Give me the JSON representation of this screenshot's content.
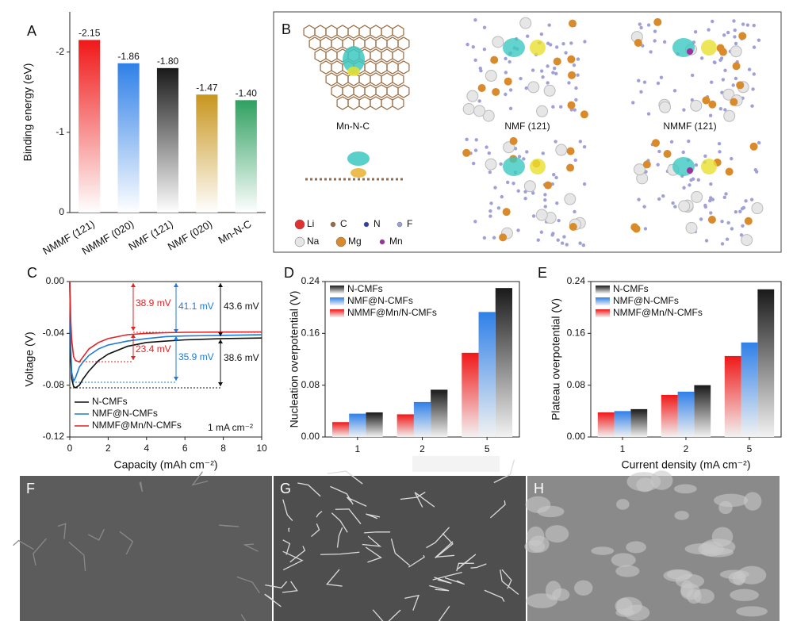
{
  "chart_data": [
    {
      "type": "bar",
      "panel": "A",
      "ylabel": "Binding energy (eV)",
      "categories": [
        "NMMF (121)",
        "NMMF (020)",
        "NMF (121)",
        "NMF (020)",
        "Mn-N-C"
      ],
      "values": [
        -2.15,
        -1.86,
        -1.8,
        -1.47,
        -1.4
      ],
      "value_labels": [
        "-2.15",
        "-1.86",
        "-1.80",
        "-1.47",
        "-1.40"
      ],
      "colors": [
        "#f01818",
        "#2f80e8",
        "#1a1a1a",
        "#c8961e",
        "#2fa060"
      ],
      "ylim": [
        0,
        -2.5
      ],
      "yticks": [
        0,
        -1,
        -2
      ],
      "grid": false
    },
    {
      "type": "line",
      "panel": "C",
      "xlabel": "Capacity (mAh cm⁻²)",
      "ylabel": "Voltage (V)",
      "x": [
        0,
        0.05,
        0.1,
        0.2,
        0.3,
        0.5,
        0.7,
        1,
        1.5,
        2,
        3,
        4,
        5,
        6,
        8,
        10
      ],
      "series": [
        {
          "name": "N-CMFs",
          "color": "#111111",
          "values": [
            0,
            -0.06,
            -0.075,
            -0.081,
            -0.082,
            -0.08,
            -0.075,
            -0.069,
            -0.061,
            -0.056,
            -0.05,
            -0.047,
            -0.046,
            -0.045,
            -0.044,
            -0.0436
          ]
        },
        {
          "name": "NMF@N-CMFs",
          "color": "#1f7ad8",
          "values": [
            0,
            -0.05,
            -0.07,
            -0.077,
            -0.074,
            -0.066,
            -0.062,
            -0.057,
            -0.052,
            -0.049,
            -0.046,
            -0.044,
            -0.0425,
            -0.042,
            -0.0415,
            -0.0411
          ]
        },
        {
          "name": "NMMF@Mn/N-CMFs",
          "color": "#e02424",
          "values": [
            0,
            -0.03,
            -0.045,
            -0.058,
            -0.061,
            -0.062,
            -0.058,
            -0.052,
            -0.047,
            -0.044,
            -0.041,
            -0.04,
            -0.0395,
            -0.0392,
            -0.039,
            -0.0389
          ]
        }
      ],
      "annotations": [
        {
          "text": "38.9 mV",
          "color": "#e02424"
        },
        {
          "text": "23.4 mV",
          "color": "#e02424"
        },
        {
          "text": "41.1 mV",
          "color": "#1f7ad8"
        },
        {
          "text": "35.9 mV",
          "color": "#1f7ad8"
        },
        {
          "text": "43.6 mV",
          "color": "#111111"
        },
        {
          "text": "38.6 mV",
          "color": "#111111"
        },
        {
          "text": "1 mA cm⁻²",
          "color": "#111111"
        }
      ],
      "xlim": [
        0,
        10
      ],
      "xticks": [
        0,
        2,
        4,
        6,
        8,
        10
      ],
      "ylim": [
        -0.12,
        0
      ],
      "yticks": [
        {
          "value": 0,
          "label": "0.00"
        },
        {
          "value": -0.04,
          "label": "-0.04"
        },
        {
          "value": -0.08,
          "label": "-0.08"
        },
        {
          "value": -0.12,
          "label": "-0.12"
        }
      ],
      "legend": "lower left",
      "grid": false
    },
    {
      "type": "bar",
      "panel": "D",
      "ylabel": "Nucleation overpotential (V)",
      "categories": [
        "1",
        "2",
        "5"
      ],
      "series": [
        {
          "name": "N-CMFs",
          "color": "#1a1a1a",
          "values": [
            0.038,
            0.073,
            0.23
          ]
        },
        {
          "name": "NMF@N-CMFs",
          "color": "#2f80e8",
          "values": [
            0.036,
            0.054,
            0.193
          ]
        },
        {
          "name": "NMMF@Mn/N-CMFs",
          "color": "#f01818",
          "values": [
            0.023,
            0.035,
            0.13
          ]
        }
      ],
      "ylim": [
        0,
        0.24
      ],
      "yticks": [
        {
          "value": 0,
          "label": "0.00"
        },
        {
          "value": 0.08,
          "label": "0.08"
        },
        {
          "value": 0.16,
          "label": "0.16"
        },
        {
          "value": 0.24,
          "label": "0.24"
        }
      ],
      "legend": "upper left",
      "grid": false
    },
    {
      "type": "bar",
      "panel": "E",
      "ylabel": "Plateau overpotential (V)",
      "xlabel": "Current density (mA cm⁻²)",
      "categories": [
        "1",
        "2",
        "5"
      ],
      "series": [
        {
          "name": "N-CMFs",
          "color": "#1a1a1a",
          "values": [
            0.043,
            0.08,
            0.228
          ]
        },
        {
          "name": "NMF@N-CMFs",
          "color": "#2f80e8",
          "values": [
            0.04,
            0.07,
            0.146
          ]
        },
        {
          "name": "NMMF@Mn/N-CMFs",
          "color": "#f01818",
          "values": [
            0.038,
            0.065,
            0.125
          ]
        }
      ],
      "ylim": [
        0,
        0.24
      ],
      "yticks": [
        {
          "value": 0,
          "label": "0.00"
        },
        {
          "value": 0.08,
          "label": "0.08"
        },
        {
          "value": 0.16,
          "label": "0.16"
        },
        {
          "value": 0.24,
          "label": "0.24"
        }
      ],
      "legend": "upper left",
      "grid": false
    }
  ],
  "panel_b": {
    "panel": "B",
    "labels": [
      "Mn-N-C",
      "NMF (121)",
      "NMMF (121)"
    ],
    "legend": [
      {
        "name": "Li",
        "color": "#e03030"
      },
      {
        "name": "C",
        "color": "#9a6a40"
      },
      {
        "name": "N",
        "color": "#3040a0"
      },
      {
        "name": "F",
        "color": "#a0a0d8"
      },
      {
        "name": "Na",
        "color": "#e6e6e6"
      },
      {
        "name": "Mg",
        "color": "#d98a2a"
      },
      {
        "name": "Mn",
        "color": "#a030a0"
      }
    ]
  },
  "sem": [
    {
      "panel": "F"
    },
    {
      "panel": "G"
    },
    {
      "panel": "H"
    }
  ]
}
